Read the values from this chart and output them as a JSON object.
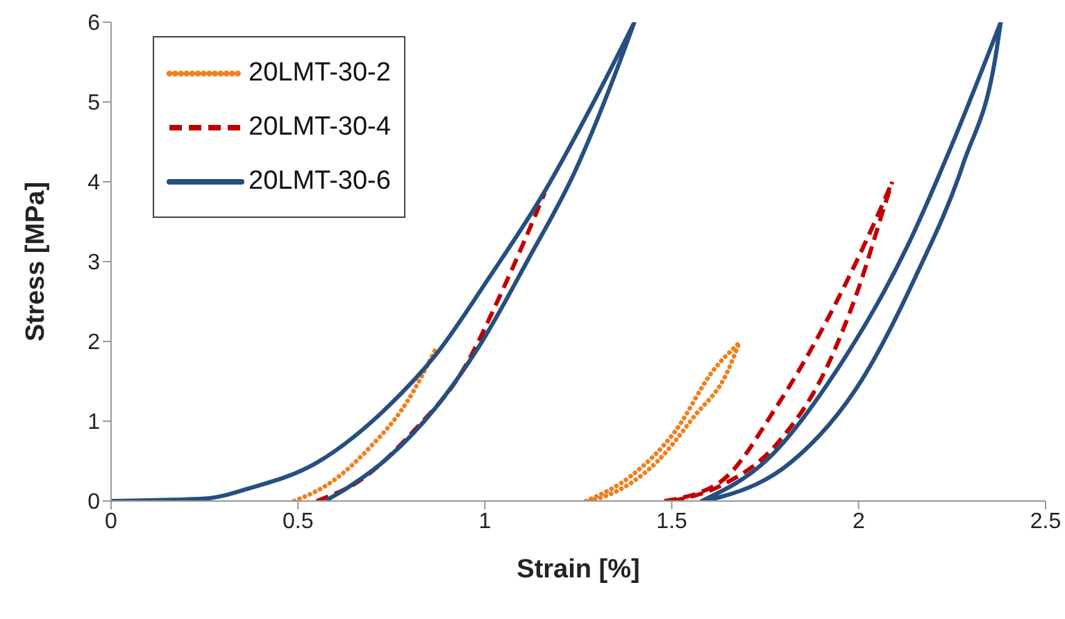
{
  "chart_data": {
    "type": "line",
    "xlabel": "Strain [%]",
    "ylabel": "Stress [MPa]",
    "xlim": [
      0,
      2.5
    ],
    "xticks": [
      0,
      0.5,
      1,
      1.5,
      2,
      2.5
    ],
    "ylim": [
      0,
      6
    ],
    "yticks": [
      0,
      1,
      2,
      3,
      4,
      5,
      6
    ],
    "grid": false,
    "legend": "top left",
    "marker": "none",
    "series": [
      {
        "name": "20LMT-30-2",
        "color": "#f07f1c",
        "line_style": "dotted",
        "x": [
          0.49,
          0.59,
          0.69,
          0.79,
          0.87,
          null,
          1.27,
          1.39,
          1.51,
          1.61,
          1.68,
          null,
          1.28,
          1.36,
          1.46,
          1.56,
          1.65,
          1.68
        ],
        "values": [
          0,
          0.24,
          0.66,
          1.23,
          1.92,
          null,
          0,
          0.31,
          0.88,
          1.63,
          1.98,
          null,
          0,
          0.14,
          0.49,
          1.06,
          1.63,
          1.98
        ]
      },
      {
        "name": "20LMT-30-4",
        "color": "#c00000",
        "line_style": "dashed",
        "x": [
          0.55,
          0.66,
          0.81,
          0.94,
          1.05,
          1.16,
          null,
          1.48,
          1.63,
          1.78,
          1.91,
          2.02,
          2.09,
          null,
          1.5,
          1.63,
          1.78,
          1.91,
          2.0,
          2.07,
          2.09
        ],
        "values": [
          0,
          0.24,
          0.88,
          1.63,
          2.67,
          3.86,
          null,
          0,
          0.24,
          1.18,
          2.22,
          3.26,
          4.0,
          null,
          0,
          0.19,
          0.71,
          1.63,
          2.67,
          3.71,
          4.0
        ]
      },
      {
        "name": "20LMT-30-6",
        "color": "#264f80",
        "line_style": "solid",
        "x": [
          0,
          0.25,
          0.37,
          0.55,
          0.74,
          0.87,
          1.01,
          1.16,
          1.29,
          1.4,
          null,
          0.58,
          0.64,
          0.74,
          0.87,
          0.99,
          1.115,
          1.24,
          1.375,
          1.4,
          null,
          1.58,
          1.76,
          1.94,
          2.13,
          2.25,
          2.38,
          null,
          1.58,
          1.63,
          1.82,
          2.01,
          2.15,
          2.28,
          2.37,
          2.38
        ],
        "values": [
          0,
          0.03,
          0.16,
          0.48,
          1.18,
          1.84,
          2.79,
          3.88,
          4.99,
          6.0,
          null,
          0.02,
          0.19,
          0.54,
          1.18,
          1.98,
          3.02,
          4.12,
          5.68,
          6.0,
          null,
          0,
          0.54,
          1.63,
          3.19,
          4.47,
          6.0,
          null,
          0,
          0.05,
          0.49,
          1.53,
          2.79,
          4.23,
          5.68,
          6.0
        ]
      }
    ]
  }
}
